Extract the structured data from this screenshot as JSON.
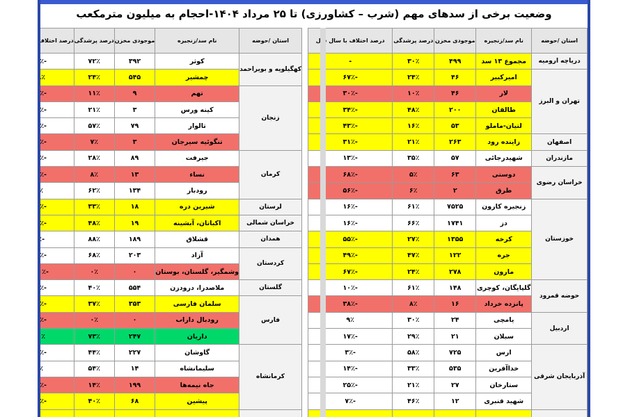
{
  "title": "وضعیت برخی از سدهای مهم (شرب – کشاورزی) تا ۲۵ مرداد ۱۴۰۴-احجام به میلیون مترمکعب",
  "headers": {
    "province": "استان /حوضه",
    "dam": "نام سد/زنجیره",
    "storage": "موجودی مخزن",
    "fill": "درصد پرشدگی",
    "diff": "درصد اختلاف با سال قبل"
  },
  "right_table": {
    "provinces": [
      {
        "name": "دریاچه ارومیه",
        "rows": 1
      },
      {
        "name": "تهران و البرز",
        "rows": 4
      },
      {
        "name": "اصفهان",
        "rows": 1
      },
      {
        "name": "مازندران",
        "rows": 1
      },
      {
        "name": "خراسان رضوی",
        "rows": 2
      },
      {
        "name": "خوزستان",
        "rows": 5
      },
      {
        "name": "حوضه قمرود",
        "rows": 2
      },
      {
        "name": "اردبیل",
        "rows": 2
      },
      {
        "name": "آذربایجان شرقی",
        "rows": 4
      },
      {
        "name": "",
        "rows": 1
      }
    ],
    "rows": [
      {
        "dam": "مجموع ۱۳ سد",
        "storage": "۴۹۹",
        "fill": "۳۰٪",
        "diff": "-",
        "color": "y"
      },
      {
        "dam": "امیرکبیر",
        "storage": "۴۶",
        "fill": "۲۴٪",
        "diff": "-۶۷٪",
        "color": "y"
      },
      {
        "dam": "لار",
        "storage": "۴۶",
        "fill": "۱۰٪",
        "diff": "-۳۰٪",
        "color": "r"
      },
      {
        "dam": "طالقان",
        "storage": "۲۰۰",
        "fill": "۴۸٪",
        "diff": "-۳۴٪",
        "color": "y"
      },
      {
        "dam": "لتیان-ماملو",
        "storage": "۵۳",
        "fill": "۱۶٪",
        "diff": "-۴۳٪",
        "color": "y"
      },
      {
        "dam": "زاینده رود",
        "storage": "۲۶۳",
        "fill": "۲۱٪",
        "diff": "-۳۱٪",
        "color": "y"
      },
      {
        "dam": "شهیدرجائی",
        "storage": "۵۷",
        "fill": "۳۵٪",
        "diff": "-۱۳٪",
        "color": "w"
      },
      {
        "dam": "دوستی",
        "storage": "۶۳",
        "fill": "۵٪",
        "diff": "-۶۸٪",
        "color": "r"
      },
      {
        "dam": "طرق",
        "storage": "۲",
        "fill": "۶٪",
        "diff": "-۵۶٪",
        "color": "r"
      },
      {
        "dam": "زنجیره کارون",
        "storage": "۷۵۲۵",
        "fill": "۶۱٪",
        "diff": "-۱۶٪",
        "color": "w"
      },
      {
        "dam": "دز",
        "storage": "۱۷۴۱",
        "fill": "۶۶٪",
        "diff": "-۱۶٪",
        "color": "w"
      },
      {
        "dam": "کرخه",
        "storage": "۱۳۵۵",
        "fill": "۲۷٪",
        "diff": "-۵۵٪",
        "color": "y"
      },
      {
        "dam": "جره",
        "storage": "۱۲۲",
        "fill": "۴۷٪",
        "diff": "-۴۹٪",
        "color": "y"
      },
      {
        "dam": "مارون",
        "storage": "۲۷۸",
        "fill": "۲۴٪",
        "diff": "-۶۷٪",
        "color": "y"
      },
      {
        "dam": "گلپایگان، کوچری",
        "storage": "۱۴۸",
        "fill": "۶۱٪",
        "diff": "-۱۰٪",
        "color": "w"
      },
      {
        "dam": "پانزده خرداد",
        "storage": "۱۶",
        "fill": "۸٪",
        "diff": "-۳۸٪",
        "color": "r"
      },
      {
        "dam": "یامچی",
        "storage": "۲۴",
        "fill": "۳۰٪",
        "diff": "۹٪",
        "color": "w"
      },
      {
        "dam": "سبلان",
        "storage": "۲۱",
        "fill": "۲۹٪",
        "diff": "-۱۷٪",
        "color": "w"
      },
      {
        "dam": "ارس",
        "storage": "۷۲۵",
        "fill": "۵۸٪",
        "diff": "-۳٪",
        "color": "w"
      },
      {
        "dam": "خداآفرین",
        "storage": "۵۳۵",
        "fill": "۳۳٪",
        "diff": "-۱۴٪",
        "color": "w"
      },
      {
        "dam": "ستارخان",
        "storage": "۲۷",
        "fill": "۲۱٪",
        "diff": "-۲۵٪",
        "color": "w"
      },
      {
        "dam": "شهید قنبری",
        "storage": "۱۲",
        "fill": "۴۶٪",
        "diff": "-۷٪",
        "color": "w"
      },
      {
        "dam": "",
        "storage": "",
        "fill": "",
        "diff": "",
        "color": "y"
      }
    ]
  },
  "left_table": {
    "provinces": [
      {
        "name": "کهگیلویه و بویراحمد",
        "rows": 2
      },
      {
        "name": "زنجان",
        "rows": 4
      },
      {
        "name": "کرمان",
        "rows": 3
      },
      {
        "name": "لرستان",
        "rows": 1
      },
      {
        "name": "خراسان شمالی",
        "rows": 1
      },
      {
        "name": "همدان",
        "rows": 1
      },
      {
        "name": "کردستان",
        "rows": 2
      },
      {
        "name": "گلستان",
        "rows": 1
      },
      {
        "name": "فارس",
        "rows": 3
      },
      {
        "name": "کرمانشاه",
        "rows": 4
      },
      {
        "name": "",
        "rows": 1
      }
    ],
    "rows": [
      {
        "dam": "کوثر",
        "storage": "۳۹۲",
        "fill": "۷۲٪",
        "diff": "-۲۳٪",
        "color": "w"
      },
      {
        "dam": "چمشیر",
        "storage": "۵۴۵",
        "fill": "۲۴٪",
        "diff": "۲۸٪",
        "color": "y"
      },
      {
        "dam": "تهم",
        "storage": "۹",
        "fill": "۱۱٪",
        "diff": "-۴۹٪",
        "color": "r"
      },
      {
        "dam": "کینه ورس",
        "storage": "۳",
        "fill": "۲۱٪",
        "diff": "-۱۳٪",
        "color": "w"
      },
      {
        "dam": "تالوار",
        "storage": "۷۹",
        "fill": "۵۷٪",
        "diff": "-۲۴٪",
        "color": "w"
      },
      {
        "dam": "تنگوئیه سیرجان",
        "storage": "۳",
        "fill": "۷٪",
        "diff": "-۱۶٪",
        "color": "r"
      },
      {
        "dam": "جیرفت",
        "storage": "۸۹",
        "fill": "۲۸٪",
        "diff": "-۱۱٪",
        "color": "w"
      },
      {
        "dam": "نساء",
        "storage": "۱۳",
        "fill": "۸٪",
        "diff": "-۶۱٪",
        "color": "r"
      },
      {
        "dam": "رودبار",
        "storage": "۱۳۴",
        "fill": "۶۲٪",
        "diff": "۷٪",
        "color": "w"
      },
      {
        "dam": "شیرین دره",
        "storage": "۱۸",
        "fill": "۳۳٪",
        "diff": "-۳۵٪",
        "color": "y"
      },
      {
        "dam": "اکباتان، آبشینه",
        "storage": "۱۹",
        "fill": "۴۸٪",
        "diff": "-۲۹٪",
        "color": "y"
      },
      {
        "dam": "قشلاق",
        "storage": "۱۸۹",
        "fill": "۸۸٪",
        "diff": "-۵٪",
        "color": "w"
      },
      {
        "dam": "آزاد",
        "storage": "۲۰۳",
        "fill": "۶۸٪",
        "diff": "-۱۴٪",
        "color": "w"
      },
      {
        "dam": "وشمگیر، گلستان، بوستان",
        "storage": "۰",
        "fill": "۰٪",
        "diff": "-۱۰۰٪",
        "color": "r"
      },
      {
        "dam": "ملاصدرا، درودزن",
        "storage": "۵۵۴",
        "fill": "۴۰٪",
        "diff": "-۱۹٪",
        "color": "w"
      },
      {
        "dam": "سلمان فارسی",
        "storage": "۳۵۳",
        "fill": "۳۷٪",
        "diff": "-۳۸٪",
        "color": "y"
      },
      {
        "dam": "رودبال داراب",
        "storage": "۰",
        "fill": "۰٪",
        "diff": "-۷۰٪",
        "color": "r"
      },
      {
        "dam": "داریان",
        "storage": "۲۴۷",
        "fill": "۷۳٪",
        "diff": "۳۱٪",
        "color": "g"
      },
      {
        "dam": "گاوشان",
        "storage": "۲۲۷",
        "fill": "۴۴٪",
        "diff": "-۲۰٪",
        "color": "w"
      },
      {
        "dam": "سلیمانشاه",
        "storage": "۱۴",
        "fill": "۵۴٪",
        "diff": "۴٪",
        "color": "w"
      },
      {
        "dam": "جاه نیمه‌ها",
        "storage": "۱۹۹",
        "fill": "۱۴٪",
        "diff": "-۴۲٪",
        "color": "r"
      },
      {
        "dam": "پیشین",
        "storage": "۶۸",
        "fill": "۴۰٪",
        "diff": "-۶۰٪",
        "color": "y"
      },
      {
        "dam": "",
        "storage": "",
        "fill": "",
        "diff": "",
        "color": "y"
      }
    ]
  }
}
